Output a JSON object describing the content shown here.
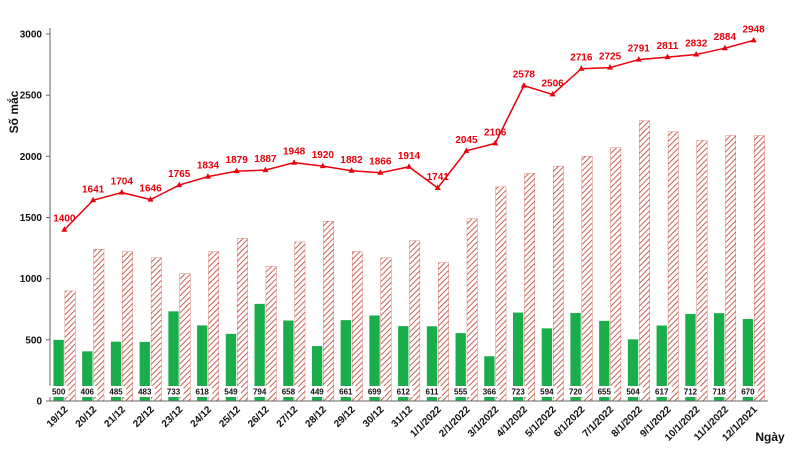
{
  "chart_data": {
    "type": "bar",
    "categories": [
      "19/12",
      "20/12",
      "21/12",
      "22/12",
      "23/12",
      "24/12",
      "25/12",
      "26/12",
      "27/12",
      "28/12",
      "29/12",
      "30/12",
      "31/12",
      "1/1/2022",
      "2/1/2022",
      "3/1/2022",
      "4/1/2022",
      "5/1/2022",
      "6/1/2022",
      "7/1/2022",
      "8/1/2022",
      "9/1/2022",
      "10/1/2022",
      "11/1/2022",
      "12/1/2021"
    ],
    "xlabel": "Ngày",
    "ylabel": "Số mắc",
    "ylim": [
      0,
      3000
    ],
    "yticks": [
      0,
      500,
      1000,
      1500,
      2000,
      2500,
      3000
    ],
    "grid": false,
    "series": [
      {
        "kind": "line",
        "color": "#e8000b",
        "values": [
          1400,
          1641,
          1704,
          1646,
          1765,
          1834,
          1879,
          1887,
          1948,
          1920,
          1882,
          1866,
          1914,
          1741,
          2045,
          2106,
          2578,
          2506,
          2716,
          2725,
          2791,
          2811,
          2832,
          2884,
          2948
        ]
      },
      {
        "kind": "bar",
        "color": "#1aad4b",
        "values": [
          500,
          406,
          485,
          483,
          733,
          618,
          549,
          794,
          658,
          449,
          661,
          699,
          612,
          611,
          555,
          366,
          723,
          594,
          720,
          655,
          504,
          617,
          712,
          718,
          670
        ]
      },
      {
        "kind": "bar-hatched",
        "color": "#c0392b",
        "values": [
          900,
          1240,
          1220,
          1170,
          1040,
          1220,
          1330,
          1100,
          1300,
          1470,
          1220,
          1170,
          1310,
          1130,
          1490,
          1750,
          1860,
          1920,
          2000,
          2070,
          2290,
          2200,
          2130,
          2170,
          2170
        ]
      }
    ]
  }
}
